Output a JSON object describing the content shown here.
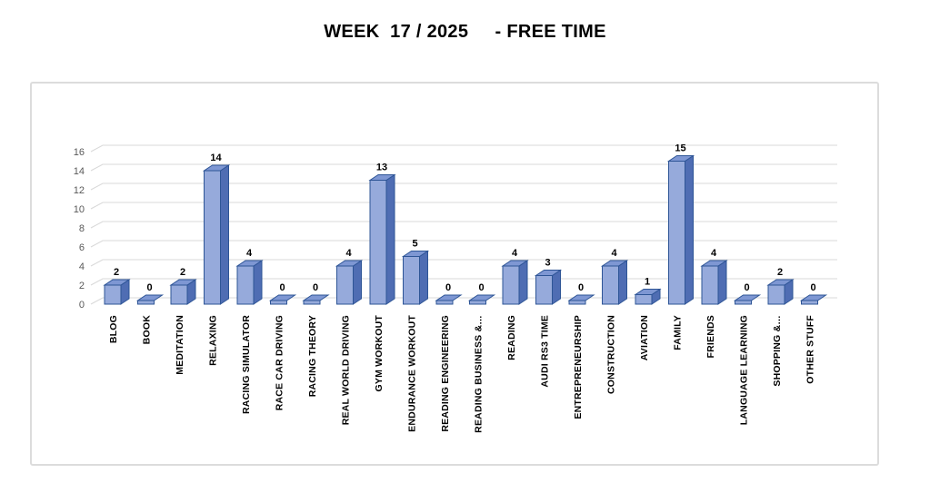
{
  "chart_data": {
    "type": "bar",
    "title": "WEEK  17 / 2025     - FREE TIME",
    "categories": [
      "BLOG",
      "BOOK",
      "MEDITATION",
      "RELAXING",
      "RACING SIMULATOR",
      "RACE CAR DRIVING",
      "RACING THEORY",
      "REAL WORLD DRIVING",
      "GYM WORKOUT",
      "ENDURANCE WORKOUT",
      "READING ENGINEERING",
      "READING BUSINESS &…",
      "READING",
      "AUDI RS3 TIME",
      "ENTREPRENEURSHIP",
      "CONSTRUCTION",
      "AVIATION",
      "FAMILY",
      "FRIENDS",
      "LANGUAGE LEARNING",
      "SHOPPING &…",
      "OTHER STUFF"
    ],
    "values": [
      2,
      0,
      2,
      14,
      4,
      0,
      0,
      4,
      13,
      5,
      0,
      0,
      4,
      3,
      0,
      4,
      1,
      15,
      4,
      0,
      2,
      0
    ],
    "xlabel": "",
    "ylabel": "",
    "ylim": [
      0,
      16
    ],
    "ytick_step": 2,
    "yticks": [
      0,
      2,
      4,
      6,
      8,
      10,
      12,
      14,
      16
    ],
    "grid": true,
    "legend": false,
    "style": "excel-3d-bar",
    "data_labels": true,
    "colors": {
      "bar_front": "#96aadb",
      "bar_top": "#7e97d3",
      "bar_side": "#4f6db3",
      "bar_stroke": "#2e5596",
      "gridline": "#d9d9d9",
      "tick_label": "#595959",
      "value_label": "#000000",
      "category_label": "#000000",
      "frame_border": "#dcdcdc",
      "background": "#ffffff"
    }
  }
}
